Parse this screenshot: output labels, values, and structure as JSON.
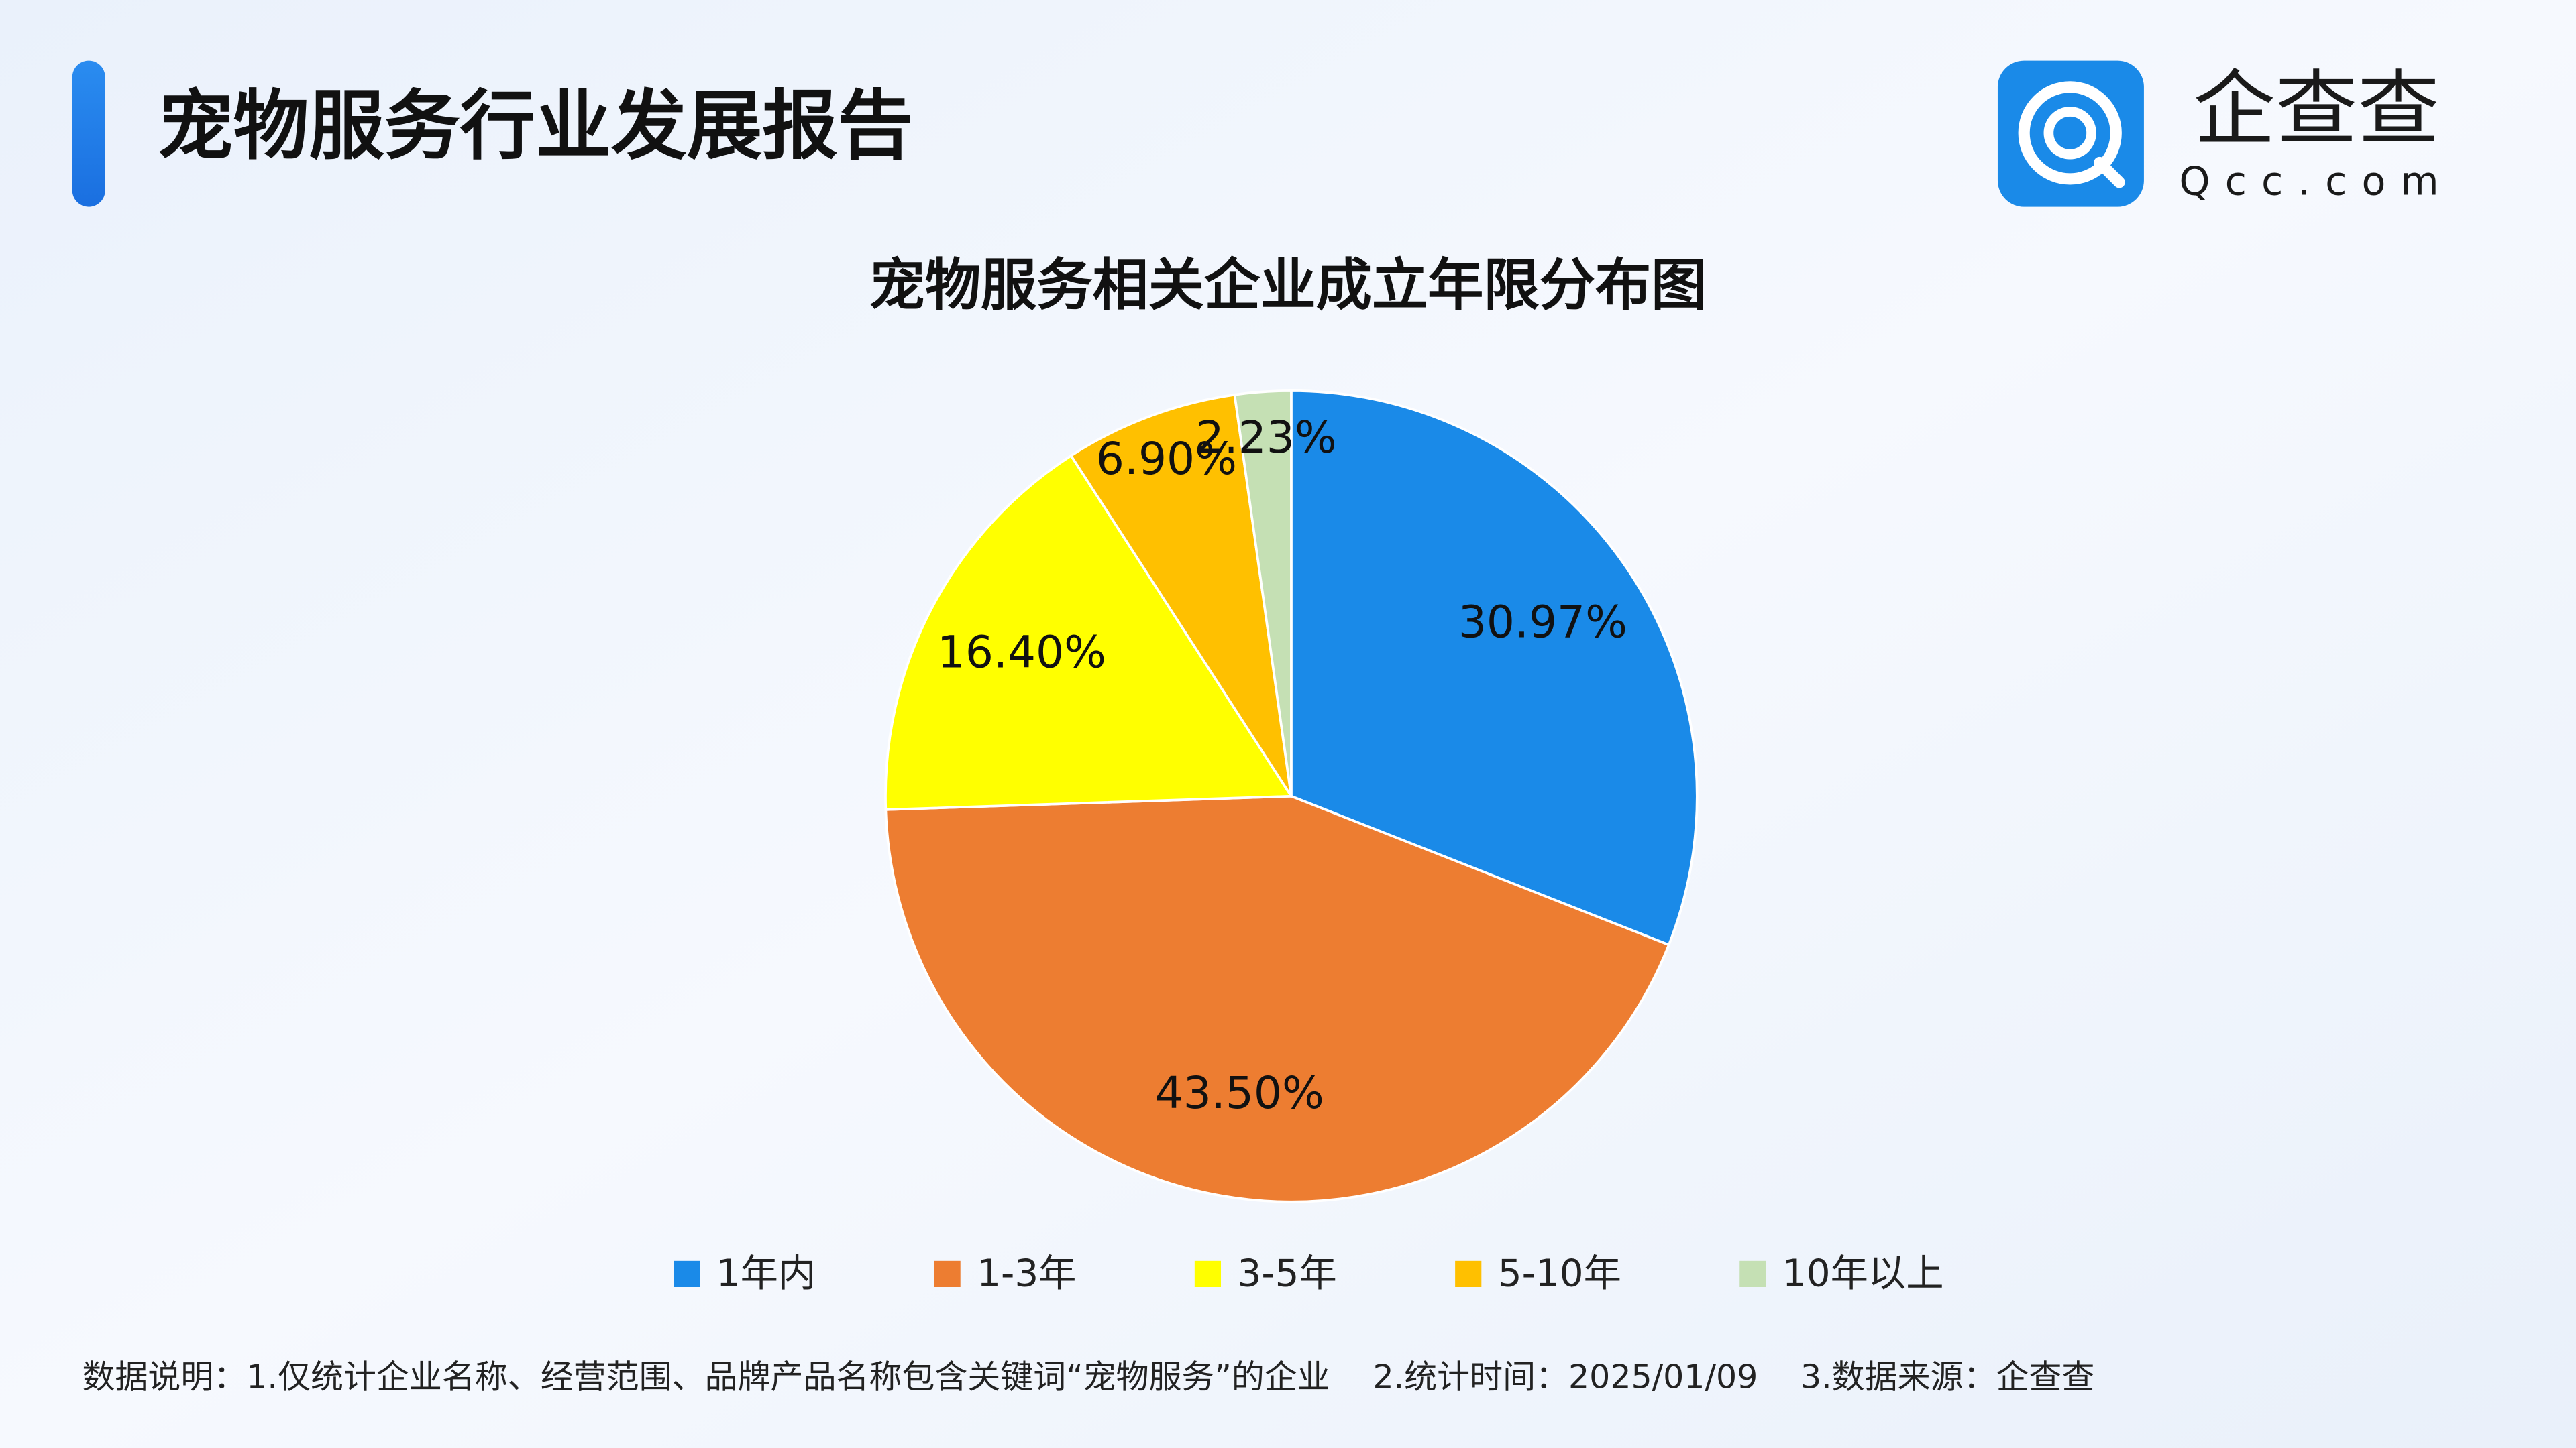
{
  "header": {
    "title": "宠物服务行业发展报告",
    "brand": "企查查",
    "brand_url": "Qcc.com"
  },
  "chart_data": {
    "type": "pie",
    "title": "宠物服务相关企业成立年限分布图",
    "categories": [
      "1年内",
      "1-3年",
      "3-5年",
      "5-10年",
      "10年以上"
    ],
    "values": [
      30.97,
      43.5,
      16.4,
      6.9,
      2.23
    ],
    "value_labels": [
      "30.97%",
      "43.50%",
      "16.40%",
      "6.90%",
      "2.23%"
    ],
    "colors": [
      "#1a8ae8",
      "#ed7d31",
      "#ffff00",
      "#ffc000",
      "#c5e0b4"
    ],
    "legend": "bottom"
  },
  "footer": {
    "notes": [
      "数据说明：1.仅统计企业名称、经营范围、品牌产品名称包含关键词“宠物服务”的企业",
      "2.统计时间：2025/01/09",
      "3.数据来源：企查查"
    ]
  }
}
